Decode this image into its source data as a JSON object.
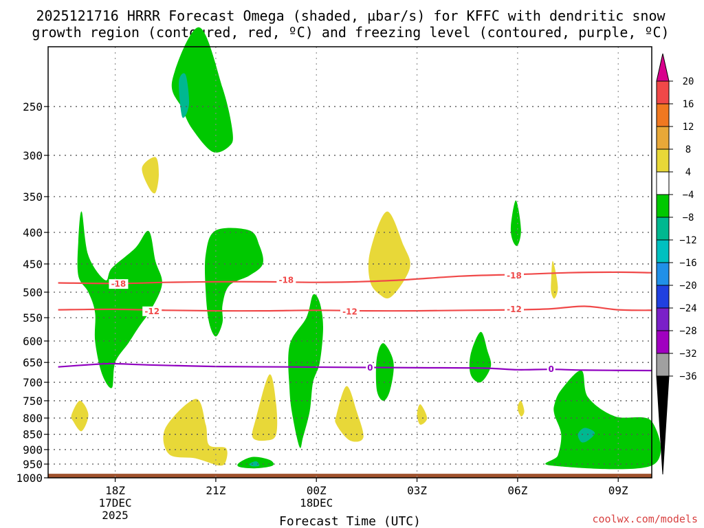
{
  "chart_data": {
    "type": "time-height contour",
    "title_lines": [
      "2025121716 HRRR Forecast Omega (shaded, µbar/s) for KFFC with dendritic snow",
      "growth region (contoured, red, ºC) and freezing level (contoured, purple, ºC)"
    ],
    "xlabel": "Forecast Time (UTC)",
    "x_ticks": [
      {
        "hour": 2,
        "lines": [
          "18Z",
          "17DEC",
          "2025"
        ]
      },
      {
        "hour": 5,
        "lines": [
          "21Z"
        ]
      },
      {
        "hour": 8,
        "lines": [
          "00Z",
          "18DEC"
        ]
      },
      {
        "hour": 11,
        "lines": [
          "03Z"
        ]
      },
      {
        "hour": 14,
        "lines": [
          "06Z"
        ]
      },
      {
        "hour": 17,
        "lines": [
          "09Z"
        ]
      }
    ],
    "xlim_hours": [
      0,
      18
    ],
    "y_ticks_mb": [
      250,
      300,
      350,
      400,
      450,
      500,
      550,
      600,
      650,
      700,
      750,
      800,
      850,
      900,
      950,
      1000
    ],
    "ylim_mb": [
      200,
      1000
    ],
    "colorbar": {
      "levels": [
        20,
        16,
        12,
        8,
        4,
        -4,
        -8,
        -12,
        -16,
        -20,
        -24,
        -28,
        -32,
        -36
      ],
      "colors": [
        "#d8008c",
        "#f04848",
        "#f07820",
        "#e8a838",
        "#e8d838",
        "#ffffff",
        "#00c800",
        "#00b890",
        "#00c0c0",
        "#2090e8",
        "#2040e0",
        "#7a20c8",
        "#a000c0",
        "#a0a0a0",
        "#000000"
      ]
    },
    "contours": [
      {
        "name": "dgz -18",
        "label": "-18",
        "color": "#f04848",
        "points": [
          [
            0.3,
            483
          ],
          [
            2.1,
            484
          ],
          [
            3.5,
            482
          ],
          [
            5.0,
            481
          ],
          [
            6.5,
            481
          ],
          [
            8.0,
            482
          ],
          [
            9.2,
            481
          ],
          [
            10.5,
            478
          ],
          [
            12.3,
            471
          ],
          [
            14.0,
            468
          ],
          [
            15.5,
            465
          ],
          [
            17.0,
            464
          ],
          [
            18.0,
            465
          ]
        ],
        "label_at": [
          [
            2.1,
            485
          ],
          [
            7.1,
            478
          ],
          [
            13.9,
            470
          ]
        ]
      },
      {
        "name": "dgz -12",
        "label": "-12",
        "color": "#f04848",
        "points": [
          [
            0.3,
            534
          ],
          [
            2.0,
            533
          ],
          [
            3.5,
            535
          ],
          [
            5.0,
            536
          ],
          [
            6.5,
            536
          ],
          [
            8.0,
            535
          ],
          [
            9.5,
            536
          ],
          [
            11.0,
            536
          ],
          [
            12.5,
            535
          ],
          [
            14.0,
            534
          ],
          [
            15.0,
            532
          ],
          [
            16.0,
            527
          ],
          [
            17.0,
            534
          ],
          [
            18.0,
            535
          ]
        ],
        "label_at": [
          [
            3.1,
            537
          ],
          [
            9.0,
            538
          ],
          [
            13.9,
            533
          ]
        ]
      },
      {
        "name": "freezing level 0",
        "label": "0",
        "color": "#9000c0",
        "points": [
          [
            0.3,
            661
          ],
          [
            1.5,
            654
          ],
          [
            2.0,
            653
          ],
          [
            3.0,
            656
          ],
          [
            5.0,
            660
          ],
          [
            7.0,
            661
          ],
          [
            9.0,
            662
          ],
          [
            11.0,
            663
          ],
          [
            13.0,
            664
          ],
          [
            14.0,
            668
          ],
          [
            15.0,
            667
          ],
          [
            16.0,
            669
          ],
          [
            18.0,
            670
          ]
        ],
        "label_at": [
          [
            9.6,
            663
          ],
          [
            15.0,
            667
          ]
        ]
      }
    ],
    "omega_regions": [
      {
        "value": -6,
        "pts": [
          [
            3.7,
            227
          ],
          [
            4.5,
            186
          ],
          [
            5.2,
            233
          ],
          [
            5.5,
            275
          ],
          [
            5.4,
            290
          ],
          [
            4.9,
            296
          ],
          [
            4.3,
            272
          ],
          [
            4.0,
            252
          ]
        ]
      },
      {
        "value": -9,
        "pts": [
          [
            3.9,
            228
          ],
          [
            4.1,
            222
          ],
          [
            4.2,
            248
          ],
          [
            4.0,
            260
          ]
        ]
      },
      {
        "value": 5,
        "pts": [
          [
            2.8,
            314
          ],
          [
            3.2,
            302
          ],
          [
            3.3,
            322
          ],
          [
            3.2,
            345
          ],
          [
            3.0,
            338
          ]
        ]
      },
      {
        "value": -6,
        "pts": [
          [
            0.9,
            414
          ],
          [
            1.0,
            370
          ],
          [
            1.2,
            436
          ],
          [
            1.7,
            478
          ],
          [
            1.9,
            457
          ],
          [
            2.6,
            424
          ],
          [
            3.0,
            398
          ],
          [
            3.2,
            445
          ],
          [
            3.4,
            484
          ],
          [
            3.1,
            530
          ],
          [
            2.7,
            570
          ],
          [
            2.4,
            604
          ],
          [
            2.0,
            650
          ],
          [
            1.9,
            715
          ],
          [
            1.6,
            677
          ],
          [
            1.4,
            600
          ],
          [
            1.4,
            540
          ],
          [
            1.2,
            500
          ],
          [
            0.9,
            470
          ]
        ]
      },
      {
        "value": -6,
        "pts": [
          [
            4.7,
            434
          ],
          [
            5.0,
            397
          ],
          [
            6.0,
            397
          ],
          [
            6.3,
            420
          ],
          [
            6.4,
            450
          ],
          [
            6.0,
            470
          ],
          [
            5.4,
            488
          ],
          [
            5.2,
            525
          ],
          [
            5.2,
            560
          ],
          [
            5.0,
            590
          ],
          [
            4.8,
            560
          ],
          [
            4.7,
            500
          ]
        ]
      },
      {
        "value": -6,
        "pts": [
          [
            7.7,
            550
          ],
          [
            7.9,
            505
          ],
          [
            8.1,
            520
          ],
          [
            8.2,
            570
          ],
          [
            8.1,
            650
          ],
          [
            7.9,
            700
          ],
          [
            7.8,
            780
          ],
          [
            7.6,
            860
          ],
          [
            7.5,
            892
          ],
          [
            7.3,
            800
          ],
          [
            7.2,
            720
          ],
          [
            7.2,
            610
          ]
        ]
      },
      {
        "value": 5,
        "pts": [
          [
            9.6,
            430
          ],
          [
            10.1,
            370
          ],
          [
            10.6,
            420
          ],
          [
            10.8,
            450
          ],
          [
            10.6,
            480
          ],
          [
            10.2,
            510
          ],
          [
            9.9,
            505
          ],
          [
            9.6,
            480
          ]
        ]
      },
      {
        "value": -6,
        "pts": [
          [
            9.8,
            640
          ],
          [
            10.0,
            605
          ],
          [
            10.3,
            650
          ],
          [
            10.2,
            720
          ],
          [
            10.0,
            750
          ],
          [
            9.8,
            720
          ]
        ]
      },
      {
        "value": -6,
        "pts": [
          [
            12.6,
            630
          ],
          [
            12.9,
            580
          ],
          [
            13.1,
            622
          ],
          [
            13.2,
            660
          ],
          [
            12.9,
            700
          ],
          [
            12.6,
            680
          ]
        ]
      },
      {
        "value": -6,
        "pts": [
          [
            13.8,
            390
          ],
          [
            13.95,
            355
          ],
          [
            14.1,
            395
          ],
          [
            14.0,
            420
          ],
          [
            13.85,
            412
          ]
        ]
      },
      {
        "value": 5,
        "pts": [
          [
            15.0,
            478
          ],
          [
            15.05,
            445
          ],
          [
            15.2,
            490
          ],
          [
            15.1,
            512
          ],
          [
            15.0,
            500
          ]
        ]
      },
      {
        "value": -6,
        "pts": [
          [
            15.3,
            720
          ],
          [
            15.9,
            670
          ],
          [
            16.1,
            740
          ],
          [
            16.9,
            795
          ],
          [
            18.0,
            810
          ],
          [
            18.0,
            955
          ],
          [
            15.0,
            955
          ],
          [
            15.2,
            920
          ],
          [
            15.3,
            850
          ],
          [
            15.1,
            790
          ],
          [
            15.1,
            760
          ]
        ]
      },
      {
        "value": -9,
        "pts": [
          [
            15.8,
            850
          ],
          [
            16.0,
            830
          ],
          [
            16.3,
            845
          ],
          [
            16.1,
            870
          ],
          [
            15.9,
            875
          ]
        ]
      },
      {
        "value": 5,
        "pts": [
          [
            0.7,
            790
          ],
          [
            0.95,
            750
          ],
          [
            1.2,
            790
          ],
          [
            1.0,
            840
          ],
          [
            0.75,
            810
          ]
        ]
      },
      {
        "value": 5,
        "pts": [
          [
            3.5,
            830
          ],
          [
            4.4,
            745
          ],
          [
            4.7,
            820
          ],
          [
            4.8,
            885
          ],
          [
            5.3,
            895
          ],
          [
            5.3,
            940
          ],
          [
            5.1,
            955
          ],
          [
            4.4,
            930
          ],
          [
            3.6,
            915
          ]
        ]
      },
      {
        "value": 5,
        "pts": [
          [
            6.2,
            800
          ],
          [
            6.6,
            680
          ],
          [
            6.8,
            760
          ],
          [
            6.8,
            850
          ],
          [
            6.5,
            870
          ],
          [
            6.1,
            860
          ]
        ]
      },
      {
        "value": 5,
        "pts": [
          [
            8.6,
            790
          ],
          [
            8.9,
            710
          ],
          [
            9.2,
            780
          ],
          [
            9.4,
            860
          ],
          [
            9.0,
            870
          ],
          [
            8.6,
            820
          ]
        ]
      },
      {
        "value": 5,
        "pts": [
          [
            11.0,
            790
          ],
          [
            11.1,
            760
          ],
          [
            11.3,
            800
          ],
          [
            11.1,
            820
          ]
        ]
      },
      {
        "value": 5,
        "pts": [
          [
            14.0,
            770
          ],
          [
            14.1,
            750
          ],
          [
            14.2,
            780
          ],
          [
            14.1,
            795
          ]
        ]
      },
      {
        "value": -6,
        "pts": [
          [
            5.7,
            945
          ],
          [
            6.1,
            925
          ],
          [
            6.6,
            935
          ],
          [
            6.7,
            955
          ],
          [
            6.2,
            965
          ],
          [
            5.7,
            960
          ]
        ]
      },
      {
        "value": -9,
        "pts": [
          [
            6.0,
            950
          ],
          [
            6.2,
            940
          ],
          [
            6.3,
            955
          ],
          [
            6.1,
            958
          ]
        ]
      }
    ],
    "terrain": {
      "label": "surface",
      "color": "#a0522d",
      "from_mb": 985,
      "to_mb": 1000
    }
  },
  "credit": "coolwx.com/models"
}
